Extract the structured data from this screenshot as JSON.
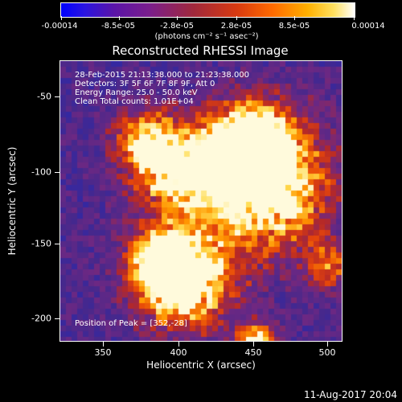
{
  "colorbar": {
    "tick_labels": [
      "-0.00014",
      "-8.5e-05",
      "-2.8e-05",
      "2.8e-05",
      "8.5e-05",
      "0.00014"
    ],
    "units": "(photons cm⁻² s⁻¹ asec⁻²)"
  },
  "title": "Reconstructed RHESSI Image",
  "info": {
    "time_range": "28-Feb-2015 21:13:38.000 to 21:23:38.000",
    "detectors": "Detectors: 3F 5F 6F 7F 8F 9F, Att 0",
    "energy_range": "Energy Range: 25.0 - 50.0 keV",
    "algorithm": "Clean    Total counts: 1.01E+04",
    "peak": "Position of Peak = [352,-28]"
  },
  "axes": {
    "xlabel": "Heliocentric X (arcsec)",
    "ylabel": "Heliocentric Y (arcsec)",
    "x_ticks": [
      "350",
      "400",
      "450",
      "500"
    ],
    "y_ticks": [
      "-50",
      "-100",
      "-150",
      "-200"
    ]
  },
  "date_stamp": "11-Aug-2017 20:04"
}
